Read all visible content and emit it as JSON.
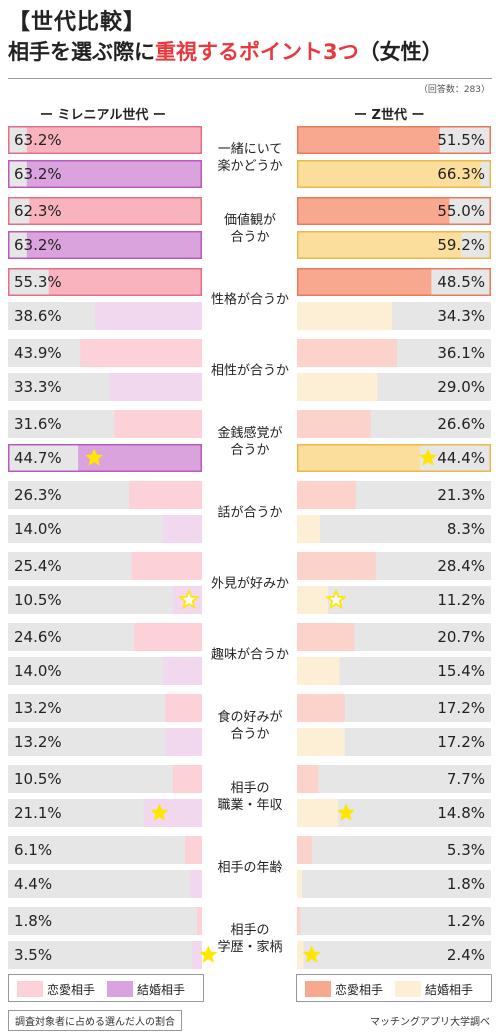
{
  "header": {
    "title_line1": "【世代比較】",
    "title_line2_prefix": "相手を選ぶ際に",
    "title_line2_highlight": "重視するポイント3つ",
    "title_line2_suffix": "（女性）",
    "respondents": "（回答数：283）"
  },
  "columns": {
    "left": "ー ミレニアル世代 ー",
    "right": "ー Z世代 ー"
  },
  "legend": {
    "left": [
      "恋愛相手",
      "結婚相手"
    ],
    "right": [
      "恋愛相手",
      "結婚相手"
    ]
  },
  "footer": {
    "note": "調査対象者に占める選んだ人の割合",
    "credit": "マッチングアプリ大学調べ"
  },
  "colors": {
    "mil_love_top3": "#f9b3bf",
    "mil_love": "#fcd2d8",
    "mil_marriage_top3": "#dba3dd",
    "mil_marriage": "#f1d8ef",
    "genz_love_top3": "#f8a88e",
    "genz_love": "#fcd3ca",
    "genz_marriage_top3": "#fcde9c",
    "genz_marriage": "#fdefd6",
    "track": "#e6e6e6",
    "mil_love_border": "#e46f86",
    "mil_marriage_border": "#b85bbd",
    "genz_love_border": "#e97b5c",
    "genz_marriage_border": "#e9b94a",
    "star_fill": "#ffe600"
  },
  "chart_data": {
    "type": "bar",
    "unit": "%",
    "xlim": [
      0,
      100
    ],
    "categories": [
      "一緒にいて\n楽かどうか",
      "価値観が\n合うか",
      "性格が合うか",
      "相性が合うか",
      "金銭感覚が\n合うか",
      "話が合うか",
      "外見が好みか",
      "趣味が合うか",
      "食の好みが\n合うか",
      "相手の\n職業・年収",
      "相手の年齢",
      "相手の\n学歴・家柄"
    ],
    "groups": [
      {
        "name": "ミレニアル世代",
        "series": [
          {
            "name": "恋愛相手",
            "values": [
              63.2,
              62.3,
              55.3,
              43.9,
              31.6,
              26.3,
              25.4,
              24.6,
              13.2,
              10.5,
              6.1,
              1.8
            ],
            "top3": [
              0,
              1,
              2
            ]
          },
          {
            "name": "結婚相手",
            "values": [
              63.2,
              63.2,
              38.6,
              33.3,
              44.7,
              14.0,
              10.5,
              14.0,
              13.2,
              21.1,
              4.4,
              3.5
            ],
            "top3": [
              0,
              1,
              4
            ],
            "stars": [
              {
                "index": 4,
                "style": "filled"
              },
              {
                "index": 6,
                "style": "outline"
              },
              {
                "index": 9,
                "style": "filled"
              },
              {
                "index": 11,
                "style": "filled"
              }
            ]
          }
        ]
      },
      {
        "name": "Z世代",
        "series": [
          {
            "name": "恋愛相手",
            "values": [
              51.5,
              55.0,
              48.5,
              36.1,
              26.6,
              21.3,
              28.4,
              20.7,
              17.2,
              7.7,
              5.3,
              1.2
            ],
            "top3": [
              0,
              1,
              2
            ]
          },
          {
            "name": "結婚相手",
            "values": [
              66.3,
              59.2,
              34.3,
              29.0,
              44.4,
              8.3,
              11.2,
              15.4,
              17.2,
              14.8,
              1.8,
              2.4
            ],
            "top3": [
              0,
              1,
              4
            ],
            "stars": [
              {
                "index": 4,
                "style": "filled"
              },
              {
                "index": 6,
                "style": "outline"
              },
              {
                "index": 9,
                "style": "filled"
              },
              {
                "index": 11,
                "style": "filled"
              }
            ]
          }
        ]
      }
    ]
  }
}
